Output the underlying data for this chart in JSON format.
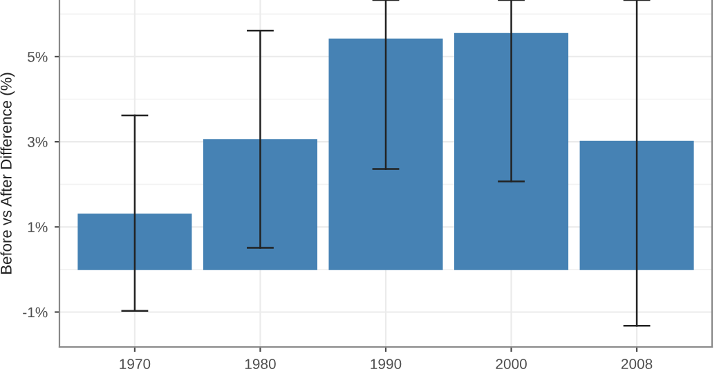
{
  "chart_data": {
    "type": "bar",
    "ylabel": "Before vs After Difference (%)",
    "categories": [
      "1970",
      "1980",
      "1990",
      "2000",
      "2008"
    ],
    "series": [
      {
        "color": "#4682b4",
        "values": [
          1.3,
          3.05,
          5.41,
          5.54,
          3.01
        ],
        "errors": [
          [
            -0.97,
            3.62
          ],
          [
            0.51,
            5.61
          ],
          [
            2.36,
            6.33
          ],
          [
            2.07,
            6.33
          ],
          [
            -1.32,
            6.33
          ]
        ]
      }
    ],
    "ylim": [
      -1.82,
      6.33
    ],
    "yticks": [
      {
        "value": -1,
        "label": "-1%"
      },
      {
        "value": 1,
        "label": "1%"
      },
      {
        "value": 3,
        "label": "3%"
      },
      {
        "value": 5,
        "label": "5%"
      }
    ],
    "grid": true
  }
}
